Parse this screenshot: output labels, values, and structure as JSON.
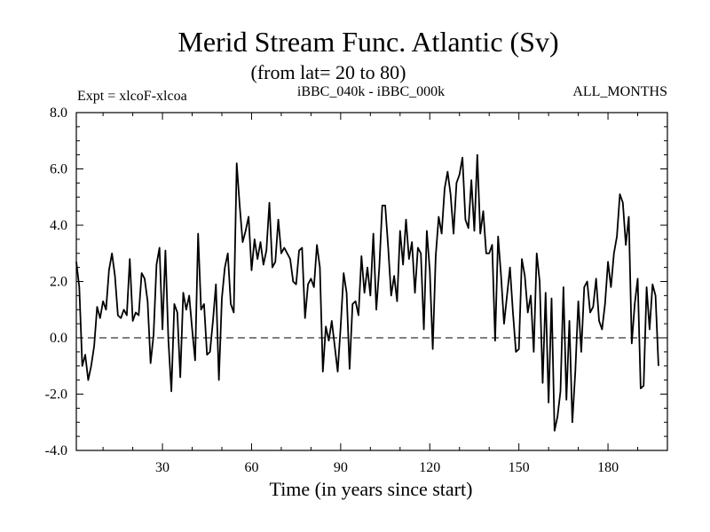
{
  "chart_data": {
    "type": "line",
    "title": "Merid Stream Func. Atlantic (Sv)",
    "subtitle": "(from lat= 20 to 80)",
    "annotation_left": "Expt = xlcoF-xlcoa",
    "annotation_center": "iBBC_040k - iBBC_000k",
    "annotation_right": "ALL_MONTHS",
    "xlabel": "Time (in years since start)",
    "ylabel": "",
    "xlim": [
      1,
      200
    ],
    "ylim": [
      -4.0,
      8.0
    ],
    "x_ticks": [
      30,
      60,
      90,
      120,
      150,
      180
    ],
    "y_ticks": [
      -4.0,
      -2.0,
      0.0,
      2.0,
      4.0,
      6.0,
      8.0
    ],
    "y_tick_labels": [
      "-4.0",
      "-2.0",
      "0.0",
      "2.0",
      "4.0",
      "6.0",
      "8.0"
    ],
    "zero_line": true,
    "grid": false,
    "series": [
      {
        "name": "iBBC_040k - iBBC_000k",
        "x_start": 1,
        "x_step": 1,
        "values": [
          2.7,
          1.8,
          -1.0,
          -0.6,
          -1.5,
          -1.0,
          -0.3,
          1.1,
          0.7,
          1.3,
          1.0,
          2.4,
          3.0,
          2.2,
          0.8,
          0.7,
          1.0,
          0.8,
          2.8,
          0.6,
          0.9,
          0.8,
          2.3,
          2.1,
          1.3,
          -0.9,
          0.1,
          2.6,
          3.2,
          0.3,
          3.1,
          -0.1,
          -1.9,
          1.2,
          0.9,
          -1.4,
          1.6,
          1.0,
          1.5,
          0.3,
          -0.8,
          3.7,
          1.0,
          1.2,
          -0.6,
          -0.5,
          0.6,
          1.9,
          -1.5,
          1.4,
          2.5,
          3.0,
          1.2,
          0.9,
          6.2,
          4.7,
          3.4,
          3.8,
          4.3,
          2.4,
          3.5,
          2.8,
          3.4,
          2.6,
          3.1,
          4.8,
          2.5,
          2.7,
          4.2,
          3.0,
          3.2,
          3.0,
          2.8,
          2.0,
          1.9,
          3.1,
          3.2,
          0.7,
          1.9,
          2.1,
          1.8,
          3.3,
          2.5,
          -1.2,
          0.4,
          -0.1,
          0.6,
          -0.3,
          -1.2,
          0.4,
          2.3,
          1.6,
          -1.1,
          1.2,
          1.3,
          0.8,
          2.9,
          1.6,
          2.5,
          1.5,
          3.7,
          1.0,
          2.5,
          4.7,
          4.7,
          3.2,
          1.5,
          2.2,
          1.3,
          3.8,
          2.6,
          4.2,
          2.8,
          3.4,
          1.6,
          3.2,
          3.0,
          0.3,
          3.8,
          2.4,
          -0.4,
          2.9,
          4.3,
          3.7,
          5.3,
          5.9,
          5.1,
          3.7,
          5.5,
          5.8,
          6.4,
          4.2,
          3.9,
          5.6,
          3.8,
          6.5,
          3.7,
          4.5,
          3.0,
          3.0,
          3.3,
          -0.1,
          3.6,
          2.2,
          0.5,
          1.5,
          2.5,
          0.9,
          -0.5,
          -0.4,
          2.8,
          2.2,
          0.9,
          1.5,
          -0.5,
          3.0,
          2.0,
          -1.6,
          1.6,
          -2.3,
          1.4,
          -3.3,
          -2.8,
          -1.9,
          1.8,
          -2.2,
          0.6,
          -3.0,
          -1.2,
          1.3,
          -0.5,
          1.8,
          2.0,
          0.9,
          1.1,
          2.1,
          0.6,
          0.3,
          1.2,
          2.7,
          1.8,
          3.0,
          3.6,
          5.1,
          4.8,
          3.3,
          4.3,
          -0.2,
          1.2,
          2.1,
          -1.8,
          -1.7,
          1.8,
          0.3,
          1.9,
          1.5,
          -1.0
        ]
      }
    ]
  }
}
